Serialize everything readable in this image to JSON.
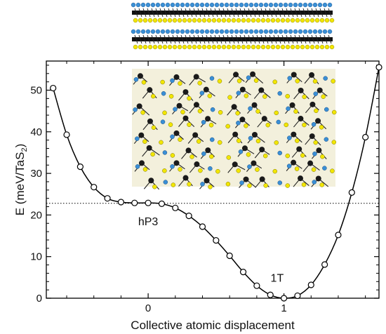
{
  "chart_data": {
    "type": "line",
    "xlabel": "Collective atomic displacement",
    "ylabel_main": "E (meV/TaS",
    "ylabel_sub": "2",
    "ylabel_end": ")",
    "xlim": [
      -0.75,
      1.7
    ],
    "ylim": [
      0,
      57
    ],
    "xticks": [
      0,
      1
    ],
    "yticks": [
      0,
      10,
      20,
      30,
      40,
      50
    ],
    "reference_line_y": 22.8,
    "grid": false,
    "series": [
      {
        "marker": "open-circle",
        "color": "#000000",
        "x": [
          -0.7,
          -0.6,
          -0.5,
          -0.4,
          -0.3,
          -0.2,
          -0.1,
          0.0,
          0.1,
          0.2,
          0.3,
          0.4,
          0.5,
          0.6,
          0.7,
          0.8,
          0.9,
          1.0,
          1.1,
          1.2,
          1.3,
          1.4,
          1.5,
          1.6,
          1.7
        ],
        "y": [
          50.5,
          39.3,
          31.6,
          26.7,
          24.0,
          23.1,
          22.9,
          22.9,
          22.7,
          21.7,
          19.8,
          17.2,
          13.9,
          10.2,
          6.3,
          3.0,
          0.8,
          0.0,
          0.6,
          3.2,
          8.1,
          15.2,
          25.4,
          38.7,
          55.5
        ]
      }
    ],
    "annotations": [
      {
        "text": "hP3",
        "x": 0.0,
        "y": 17.5
      },
      {
        "text": "1T",
        "x": 0.95,
        "y": 4.0
      }
    ]
  },
  "colors": {
    "sulfur": "#f2e600",
    "tantalum": "#1a1a1a",
    "blue_atom": "#3a8fd6",
    "panel_bg": "#f3f0dc"
  }
}
